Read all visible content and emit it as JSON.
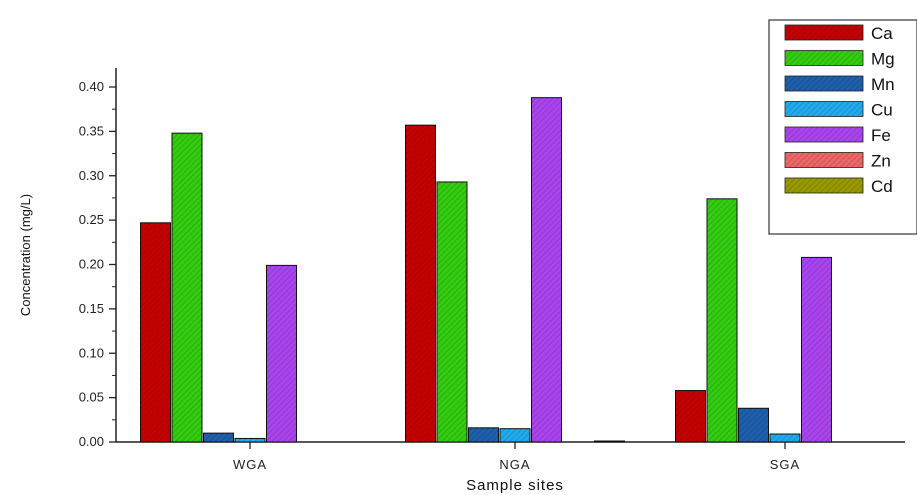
{
  "chart_data": {
    "type": "bar",
    "title": "",
    "xlabel": "Sample sites",
    "ylabel": "Concentration (mg/L)",
    "categories": [
      "WGA",
      "NGA",
      "SGA"
    ],
    "ylim": [
      0,
      0.4
    ],
    "yticks": [
      "0.00",
      "0.05",
      "0.10",
      "0.15",
      "0.20",
      "0.25",
      "0.30",
      "0.35",
      "0.40"
    ],
    "grid": false,
    "legend_position": "top-right",
    "series": [
      {
        "name": "Ca",
        "color": "#c40000",
        "values": [
          0.247,
          0.357,
          0.058
        ]
      },
      {
        "name": "Mg",
        "color": "#33cc11",
        "values": [
          0.348,
          0.293,
          0.274
        ]
      },
      {
        "name": "Mn",
        "color": "#1f5fae",
        "values": [
          0.01,
          0.016,
          0.038
        ]
      },
      {
        "name": "Cu",
        "color": "#22aaee",
        "values": [
          0.004,
          0.015,
          0.009
        ]
      },
      {
        "name": "Fe",
        "color": "#aa44ee",
        "values": [
          0.199,
          0.388,
          0.208
        ]
      },
      {
        "name": "Zn",
        "color": "#ee6666",
        "values": [
          0.0,
          0.0,
          0.0
        ]
      },
      {
        "name": "Cd",
        "color": "#999900",
        "values": [
          0.0,
          0.001,
          0.0
        ]
      }
    ]
  }
}
